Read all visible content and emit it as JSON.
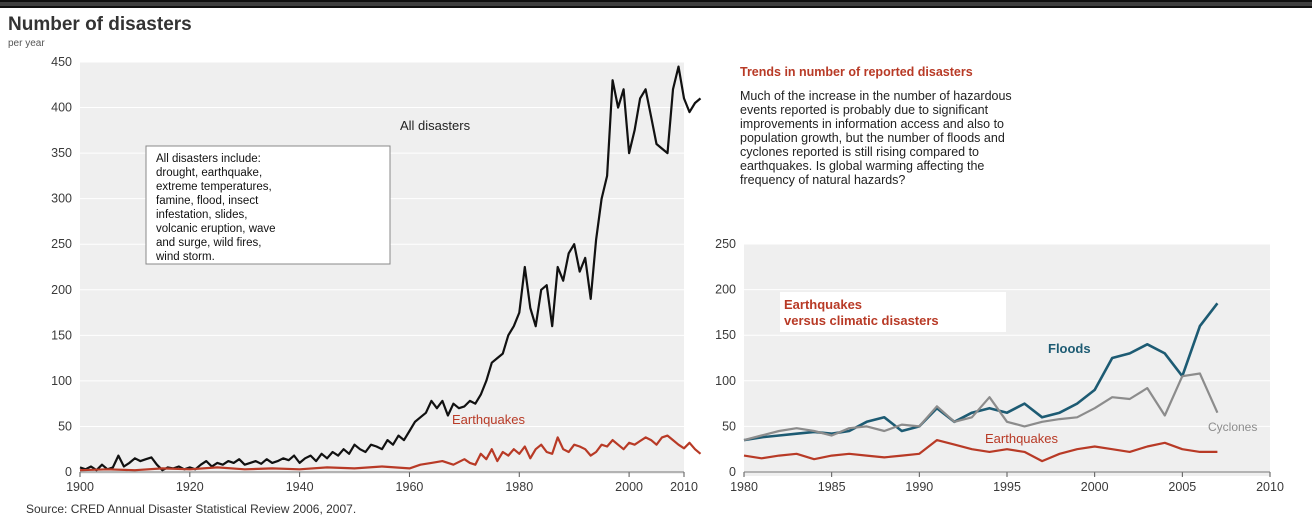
{
  "header": {
    "title": "Number of disasters",
    "subtitle": "per year"
  },
  "source": "Source: CRED Annual Disaster Statistical Review 2006, 2007.",
  "trend_box": {
    "heading": "Trends in number of reported disasters",
    "lines": [
      "Much of the increase in the number of hazardous",
      "events reported is probably due to significant",
      "improvements in information access and also to",
      "population growth, but the number of floods and",
      "cyclones reported is still rising compared to",
      "earthquakes. Is global warming affecting the",
      "frequency of natural hazards?"
    ]
  },
  "colors": {
    "panel_bg": "#efefef",
    "grid": "#ffffff",
    "all_disasters": "#111111",
    "earthquakes": "#b83a26",
    "floods": "#1d5b73",
    "cyclones": "#8c8c8c",
    "accent_text": "#b83a26",
    "axis_text": "#3a3a3a"
  },
  "chart_data": [
    {
      "type": "line",
      "title": "Number of disasters",
      "ylabel": "per year",
      "xlim": [
        1900,
        2010
      ],
      "ylim": [
        0,
        450
      ],
      "xticks": [
        1900,
        1920,
        1940,
        1960,
        1980,
        2000,
        2010
      ],
      "yticks": [
        0,
        50,
        100,
        150,
        200,
        250,
        300,
        350,
        400,
        450
      ],
      "grid": true,
      "note": {
        "lines": [
          "All disasters include:",
          "drought, earthquake,",
          "extreme temperatures,",
          "famine, flood, insect",
          "infestation, slides,",
          "volcanic eruption, wave",
          "and surge, wild fires,",
          "wind storm."
        ]
      },
      "series": [
        {
          "name": "All disasters",
          "color": "#111111",
          "points": [
            [
              1900,
              5
            ],
            [
              1901,
              3
            ],
            [
              1902,
              6
            ],
            [
              1903,
              2
            ],
            [
              1904,
              8
            ],
            [
              1905,
              3
            ],
            [
              1906,
              5
            ],
            [
              1907,
              18
            ],
            [
              1908,
              6
            ],
            [
              1909,
              10
            ],
            [
              1910,
              15
            ],
            [
              1911,
              12
            ],
            [
              1912,
              14
            ],
            [
              1913,
              16
            ],
            [
              1914,
              8
            ],
            [
              1915,
              2
            ],
            [
              1916,
              5
            ],
            [
              1917,
              4
            ],
            [
              1918,
              6
            ],
            [
              1919,
              3
            ],
            [
              1920,
              5
            ],
            [
              1921,
              3
            ],
            [
              1922,
              8
            ],
            [
              1923,
              12
            ],
            [
              1924,
              6
            ],
            [
              1925,
              10
            ],
            [
              1926,
              8
            ],
            [
              1927,
              12
            ],
            [
              1928,
              10
            ],
            [
              1929,
              14
            ],
            [
              1930,
              8
            ],
            [
              1931,
              10
            ],
            [
              1932,
              12
            ],
            [
              1933,
              9
            ],
            [
              1934,
              14
            ],
            [
              1935,
              10
            ],
            [
              1936,
              12
            ],
            [
              1937,
              15
            ],
            [
              1938,
              13
            ],
            [
              1939,
              18
            ],
            [
              1940,
              10
            ],
            [
              1941,
              15
            ],
            [
              1942,
              18
            ],
            [
              1943,
              12
            ],
            [
              1944,
              20
            ],
            [
              1945,
              15
            ],
            [
              1946,
              22
            ],
            [
              1947,
              18
            ],
            [
              1948,
              25
            ],
            [
              1949,
              20
            ],
            [
              1950,
              30
            ],
            [
              1951,
              25
            ],
            [
              1952,
              22
            ],
            [
              1953,
              30
            ],
            [
              1954,
              28
            ],
            [
              1955,
              25
            ],
            [
              1956,
              35
            ],
            [
              1957,
              30
            ],
            [
              1958,
              40
            ],
            [
              1959,
              35
            ],
            [
              1960,
              45
            ],
            [
              1961,
              55
            ],
            [
              1962,
              60
            ],
            [
              1963,
              65
            ],
            [
              1964,
              78
            ],
            [
              1965,
              70
            ],
            [
              1966,
              78
            ],
            [
              1967,
              62
            ],
            [
              1968,
              75
            ],
            [
              1969,
              70
            ],
            [
              1970,
              72
            ],
            [
              1971,
              78
            ],
            [
              1972,
              75
            ],
            [
              1973,
              85
            ],
            [
              1974,
              100
            ],
            [
              1975,
              120
            ],
            [
              1976,
              125
            ],
            [
              1977,
              130
            ],
            [
              1978,
              150
            ],
            [
              1979,
              160
            ],
            [
              1980,
              175
            ],
            [
              1981,
              225
            ],
            [
              1982,
              180
            ],
            [
              1983,
              160
            ],
            [
              1984,
              200
            ],
            [
              1985,
              205
            ],
            [
              1986,
              160
            ],
            [
              1987,
              225
            ],
            [
              1988,
              210
            ],
            [
              1989,
              240
            ],
            [
              1990,
              250
            ],
            [
              1991,
              220
            ],
            [
              1992,
              235
            ],
            [
              1993,
              190
            ],
            [
              1994,
              255
            ],
            [
              1995,
              300
            ],
            [
              1996,
              325
            ],
            [
              1997,
              430
            ],
            [
              1998,
              400
            ],
            [
              1999,
              420
            ],
            [
              2000,
              350
            ],
            [
              2001,
              375
            ],
            [
              2002,
              410
            ],
            [
              2003,
              420
            ],
            [
              2004,
              390
            ],
            [
              2005,
              360
            ],
            [
              2006,
              355
            ],
            [
              2007,
              350
            ],
            [
              2008,
              420
            ],
            [
              2009,
              445
            ],
            [
              2010,
              410
            ],
            [
              2011,
              395
            ],
            [
              2012,
              405
            ],
            [
              2013,
              410
            ]
          ]
        },
        {
          "name": "Earthquakes",
          "color": "#b83a26",
          "points": [
            [
              1900,
              2
            ],
            [
              1905,
              3
            ],
            [
              1910,
              2
            ],
            [
              1915,
              4
            ],
            [
              1920,
              3
            ],
            [
              1925,
              5
            ],
            [
              1930,
              3
            ],
            [
              1935,
              4
            ],
            [
              1940,
              3
            ],
            [
              1945,
              5
            ],
            [
              1950,
              4
            ],
            [
              1955,
              6
            ],
            [
              1960,
              4
            ],
            [
              1962,
              8
            ],
            [
              1964,
              10
            ],
            [
              1966,
              12
            ],
            [
              1968,
              8
            ],
            [
              1970,
              14
            ],
            [
              1971,
              10
            ],
            [
              1972,
              8
            ],
            [
              1973,
              20
            ],
            [
              1974,
              14
            ],
            [
              1975,
              25
            ],
            [
              1976,
              12
            ],
            [
              1977,
              22
            ],
            [
              1978,
              18
            ],
            [
              1979,
              25
            ],
            [
              1980,
              20
            ],
            [
              1981,
              28
            ],
            [
              1982,
              15
            ],
            [
              1983,
              25
            ],
            [
              1984,
              30
            ],
            [
              1985,
              22
            ],
            [
              1986,
              20
            ],
            [
              1987,
              38
            ],
            [
              1988,
              25
            ],
            [
              1989,
              22
            ],
            [
              1990,
              30
            ],
            [
              1991,
              28
            ],
            [
              1992,
              25
            ],
            [
              1993,
              18
            ],
            [
              1994,
              22
            ],
            [
              1995,
              30
            ],
            [
              1996,
              28
            ],
            [
              1997,
              35
            ],
            [
              1998,
              30
            ],
            [
              1999,
              25
            ],
            [
              2000,
              32
            ],
            [
              2001,
              30
            ],
            [
              2002,
              34
            ],
            [
              2003,
              38
            ],
            [
              2004,
              35
            ],
            [
              2005,
              30
            ],
            [
              2006,
              38
            ],
            [
              2007,
              40
            ],
            [
              2008,
              35
            ],
            [
              2009,
              30
            ],
            [
              2010,
              26
            ],
            [
              2011,
              32
            ],
            [
              2012,
              25
            ],
            [
              2013,
              20
            ]
          ]
        }
      ]
    },
    {
      "type": "line",
      "title": "Earthquakes versus climatic disasters",
      "xlim": [
        1980,
        2010
      ],
      "ylim": [
        0,
        250
      ],
      "xticks": [
        1980,
        1985,
        1990,
        1995,
        2000,
        2005,
        2010
      ],
      "yticks": [
        0,
        50,
        100,
        150,
        200,
        250
      ],
      "grid": true,
      "series": [
        {
          "name": "Floods",
          "color": "#1d5b73",
          "points": [
            [
              1980,
              35
            ],
            [
              1981,
              38
            ],
            [
              1982,
              40
            ],
            [
              1983,
              42
            ],
            [
              1984,
              44
            ],
            [
              1985,
              42
            ],
            [
              1986,
              45
            ],
            [
              1987,
              55
            ],
            [
              1988,
              60
            ],
            [
              1989,
              45
            ],
            [
              1990,
              50
            ],
            [
              1991,
              70
            ],
            [
              1992,
              55
            ],
            [
              1993,
              65
            ],
            [
              1994,
              70
            ],
            [
              1995,
              65
            ],
            [
              1996,
              75
            ],
            [
              1997,
              60
            ],
            [
              1998,
              65
            ],
            [
              1999,
              75
            ],
            [
              2000,
              90
            ],
            [
              2001,
              125
            ],
            [
              2002,
              130
            ],
            [
              2003,
              140
            ],
            [
              2004,
              130
            ],
            [
              2005,
              105
            ],
            [
              2006,
              160
            ],
            [
              2007,
              185
            ]
          ]
        },
        {
          "name": "Cyclones",
          "color": "#8c8c8c",
          "points": [
            [
              1980,
              35
            ],
            [
              1981,
              40
            ],
            [
              1982,
              45
            ],
            [
              1983,
              48
            ],
            [
              1984,
              45
            ],
            [
              1985,
              40
            ],
            [
              1986,
              48
            ],
            [
              1987,
              50
            ],
            [
              1988,
              45
            ],
            [
              1989,
              52
            ],
            [
              1990,
              50
            ],
            [
              1991,
              72
            ],
            [
              1992,
              55
            ],
            [
              1993,
              60
            ],
            [
              1994,
              82
            ],
            [
              1995,
              55
            ],
            [
              1996,
              50
            ],
            [
              1997,
              55
            ],
            [
              1998,
              58
            ],
            [
              1999,
              60
            ],
            [
              2000,
              70
            ],
            [
              2001,
              82
            ],
            [
              2002,
              80
            ],
            [
              2003,
              92
            ],
            [
              2004,
              62
            ],
            [
              2005,
              105
            ],
            [
              2006,
              108
            ],
            [
              2007,
              65
            ]
          ]
        },
        {
          "name": "Earthquakes",
          "color": "#b83a26",
          "points": [
            [
              1980,
              18
            ],
            [
              1981,
              15
            ],
            [
              1982,
              18
            ],
            [
              1983,
              20
            ],
            [
              1984,
              14
            ],
            [
              1985,
              18
            ],
            [
              1986,
              20
            ],
            [
              1987,
              18
            ],
            [
              1988,
              16
            ],
            [
              1989,
              18
            ],
            [
              1990,
              20
            ],
            [
              1991,
              35
            ],
            [
              1992,
              30
            ],
            [
              1993,
              25
            ],
            [
              1994,
              22
            ],
            [
              1995,
              25
            ],
            [
              1996,
              22
            ],
            [
              1997,
              12
            ],
            [
              1998,
              20
            ],
            [
              1999,
              25
            ],
            [
              2000,
              28
            ],
            [
              2001,
              25
            ],
            [
              2002,
              22
            ],
            [
              2003,
              28
            ],
            [
              2004,
              32
            ],
            [
              2005,
              25
            ],
            [
              2006,
              22
            ],
            [
              2007,
              22
            ]
          ]
        }
      ]
    }
  ]
}
